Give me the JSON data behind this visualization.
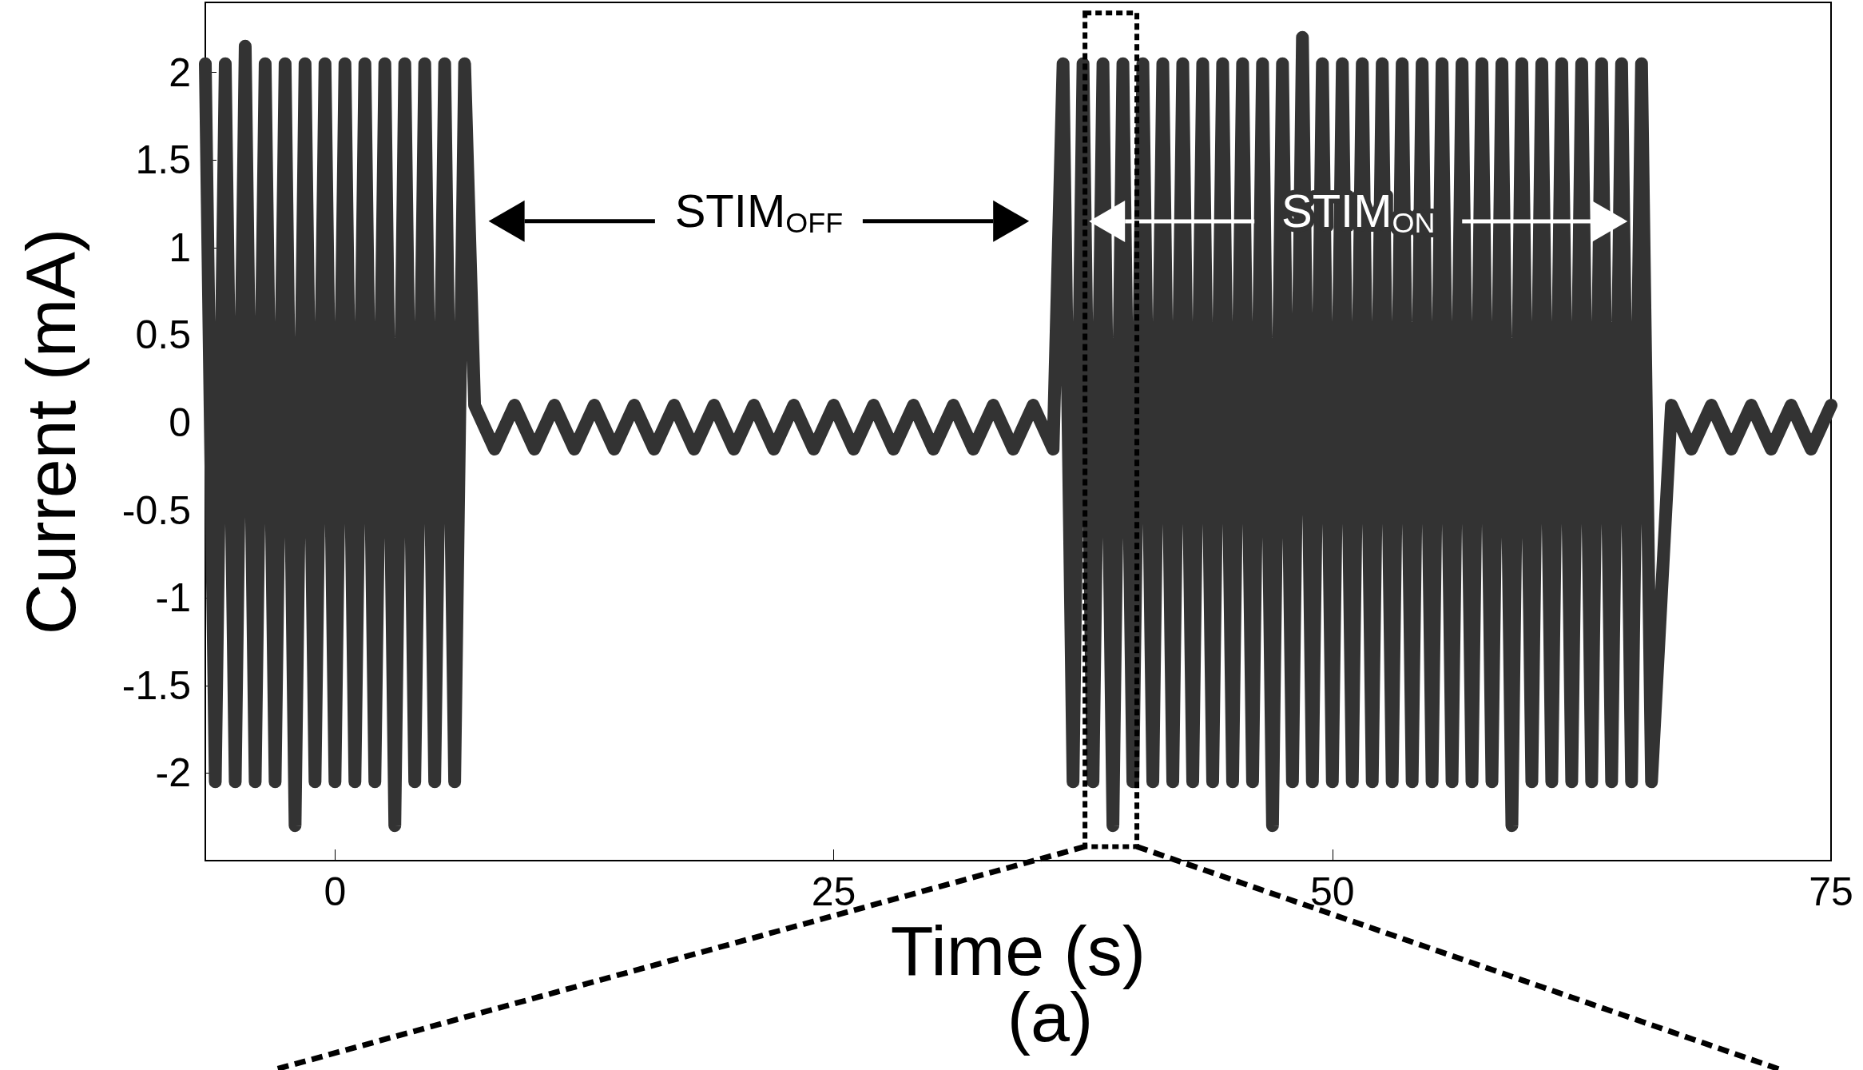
{
  "chart_data": {
    "type": "line",
    "xlabel": "Time (s)",
    "ylabel": "Current (mA)",
    "annotations": [
      "STIM$_{OFF}$",
      {
        "text": "STIM$_{ON}$",
        "x": 51.3,
        "y": 1.15
      },
      "(a)"
    ],
    "x": [
      -6.5,
      -6,
      -5.5,
      -5,
      -4.5,
      -4,
      -3.5,
      -3,
      -2.5,
      -2,
      -1.5,
      -1,
      -0.5,
      0,
      0.5,
      1,
      1.5,
      2,
      2.5,
      3,
      3.5,
      4,
      4.5,
      5,
      5.5,
      6,
      6.5,
      7,
      8,
      9,
      10,
      11,
      12,
      13,
      14,
      15,
      16,
      17,
      18,
      19,
      20,
      21,
      22,
      23,
      24,
      25,
      26,
      27,
      28,
      29,
      30,
      31,
      32,
      33,
      34,
      35,
      36,
      36.5,
      37,
      37.5,
      38,
      38.5,
      39,
      39.5,
      40,
      40.5,
      41,
      41.5,
      42,
      42.5,
      43,
      43.5,
      44,
      44.5,
      45,
      45.5,
      46,
      46.5,
      47,
      47.5,
      48,
      48.5,
      49,
      49.5,
      50,
      50.5,
      51,
      51.5,
      52,
      52.5,
      53,
      53.5,
      54,
      54.5,
      55,
      55.5,
      56,
      56.5,
      57,
      57.5,
      58,
      58.5,
      59,
      59.5,
      60,
      60.5,
      61,
      61.5,
      62,
      62.5,
      63,
      63.5,
      64,
      64.5,
      65,
      65.5,
      66,
      67,
      68,
      69,
      70,
      71,
      72,
      73,
      74,
      75
    ],
    "series": [
      {
        "color": "#333333",
        "values": [
          2.05,
          -2.05,
          2.05,
          -2.05,
          2.15,
          -2.05,
          2.05,
          -2.05,
          2.05,
          -2.3,
          2.05,
          -2.05,
          2.05,
          -2.05,
          2.05,
          -2.05,
          2.05,
          -2.05,
          2.05,
          -2.3,
          2.05,
          -2.05,
          2.05,
          -2.05,
          2.05,
          -2.05,
          2.05,
          0.1,
          -0.15,
          0.1,
          -0.15,
          0.1,
          -0.15,
          0.1,
          -0.15,
          0.1,
          -0.15,
          0.1,
          -0.15,
          0.1,
          -0.15,
          0.1,
          -0.15,
          0.1,
          -0.15,
          0.1,
          -0.15,
          0.1,
          -0.15,
          0.1,
          -0.15,
          0.1,
          -0.15,
          0.1,
          -0.15,
          0.1,
          -0.15,
          2.05,
          -2.05,
          2.05,
          -2.05,
          2.05,
          -2.3,
          2.05,
          -2.05,
          2.05,
          -2.05,
          2.05,
          -2.05,
          2.05,
          -2.05,
          2.05,
          -2.05,
          2.05,
          -2.05,
          2.05,
          -2.05,
          2.05,
          -2.3,
          2.05,
          -2.05,
          2.2,
          -2.05,
          2.05,
          -2.05,
          2.05,
          -2.05,
          2.05,
          -2.05,
          2.05,
          -2.05,
          2.05,
          -2.05,
          2.05,
          -2.05,
          2.05,
          -2.05,
          2.05,
          -2.05,
          2.05,
          -2.05,
          2.05,
          -2.3,
          2.05,
          -2.05,
          2.05,
          -2.05,
          2.05,
          -2.05,
          2.05,
          -2.05,
          2.05,
          -2.05,
          2.05,
          -2.05,
          2.05,
          -2.05,
          0.1,
          -0.15,
          0.1,
          -0.15,
          0.1,
          -0.15,
          0.1,
          -0.15,
          0.1
        ]
      }
    ],
    "xlim": [
      -6.5,
      75
    ],
    "xticks": [
      0,
      25,
      50,
      75
    ],
    "ylim": [
      -2.5,
      2.4
    ],
    "yticks": [
      -2,
      -1.5,
      -1,
      -0.5,
      0,
      0.5,
      1,
      1.5,
      2
    ],
    "grid": false,
    "marker": "none",
    "line_style": "solid"
  }
}
